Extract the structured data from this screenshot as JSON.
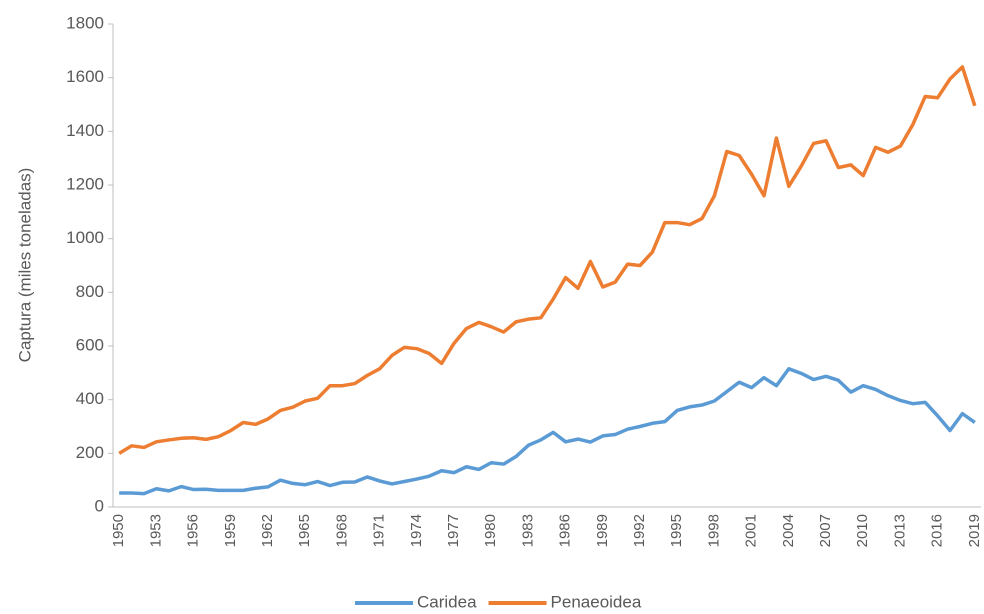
{
  "chart_data": {
    "type": "line",
    "ylabel": "Captura (miles toneladas)",
    "categories": [
      "1950",
      null,
      null,
      "1953",
      null,
      null,
      "1956",
      null,
      null,
      "1959",
      null,
      null,
      "1962",
      null,
      null,
      "1965",
      null,
      null,
      "1968",
      null,
      null,
      "1971",
      null,
      null,
      "1974",
      null,
      null,
      "1977",
      null,
      null,
      "1980",
      null,
      null,
      "1983",
      null,
      null,
      "1986",
      null,
      null,
      "1989",
      null,
      null,
      "1992",
      null,
      null,
      "1995",
      null,
      null,
      "1998",
      null,
      null,
      "2001",
      null,
      null,
      "2004",
      null,
      null,
      "2007",
      null,
      null,
      "2010",
      null,
      null,
      "2013",
      null,
      null,
      "2016",
      null,
      null,
      "2019"
    ],
    "series": [
      {
        "name": "Caridea",
        "color": "#5b9bd5",
        "values": [
          52,
          52,
          50,
          68,
          60,
          76,
          65,
          66,
          62,
          62,
          62,
          70,
          75,
          100,
          88,
          83,
          95,
          80,
          92,
          93,
          112,
          97,
          86,
          95,
          104,
          115,
          135,
          128,
          150,
          140,
          165,
          160,
          188,
          230,
          250,
          278,
          243,
          253,
          242,
          265,
          270,
          290,
          300,
          312,
          318,
          360,
          373,
          380,
          395,
          430,
          465,
          445,
          482,
          452,
          515,
          498,
          475,
          487,
          472,
          428,
          452,
          438,
          415,
          397,
          385,
          390,
          340,
          285,
          348,
          315
        ]
      },
      {
        "name": "Penaeoidea",
        "color": "#ed7d31",
        "values": [
          200,
          228,
          222,
          243,
          250,
          256,
          258,
          252,
          262,
          285,
          315,
          308,
          328,
          360,
          372,
          395,
          405,
          452,
          452,
          460,
          490,
          515,
          565,
          595,
          590,
          572,
          535,
          610,
          665,
          688,
          672,
          652,
          690,
          700,
          705,
          775,
          855,
          815,
          915,
          820,
          838,
          905,
          900,
          950,
          1060,
          1060,
          1052,
          1075,
          1160,
          1325,
          1310,
          1240,
          1160,
          1375,
          1195,
          1270,
          1355,
          1365,
          1265,
          1275,
          1235,
          1340,
          1322,
          1345,
          1425,
          1530,
          1525,
          1595,
          1640,
          1495
        ]
      }
    ],
    "ylim": [
      0,
      1800
    ],
    "yticks": [
      0,
      200,
      400,
      600,
      800,
      1000,
      1200,
      1400,
      1600,
      1800
    ],
    "grid": false,
    "legend": "bottom"
  }
}
